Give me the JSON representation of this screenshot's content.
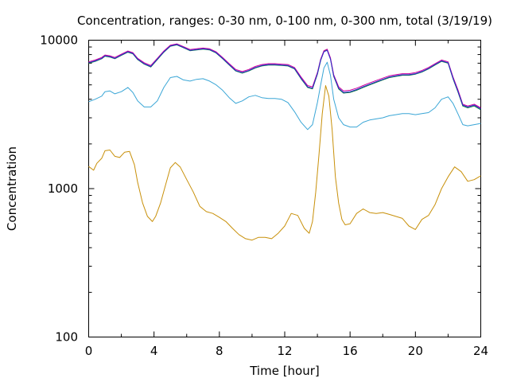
{
  "chart_data": {
    "type": "line",
    "title": "Concentration, ranges: 0-30 nm, 0-100 nm, 0-300 nm, total (3/19/19)",
    "xlabel": "Time [hour]",
    "ylabel": "Concentration",
    "xlim": [
      0,
      24
    ],
    "ylim": [
      100,
      10000
    ],
    "yscale": "log",
    "x_ticks": [
      "0",
      "4",
      "8",
      "12",
      "16",
      "20",
      "24"
    ],
    "y_ticks": [
      "100",
      "1000",
      "10000"
    ],
    "grid": false,
    "legend": "none",
    "series": [
      {
        "color": "#c8900a",
        "x": [
          0,
          0.3,
          0.5,
          0.8,
          1.0,
          1.3,
          1.6,
          1.9,
          2.2,
          2.5,
          2.8,
          3.0,
          3.3,
          3.6,
          3.9,
          4.1,
          4.4,
          4.7,
          5.0,
          5.3,
          5.6,
          6.0,
          6.4,
          6.8,
          7.2,
          7.6,
          8.0,
          8.4,
          8.8,
          9.2,
          9.6,
          10.0,
          10.4,
          10.8,
          11.2,
          11.6,
          12.0,
          12.4,
          12.8,
          13.2,
          13.5,
          13.7,
          13.9,
          14.1,
          14.3,
          14.5,
          14.7,
          14.9,
          15.1,
          15.3,
          15.5,
          15.7,
          16.0,
          16.4,
          16.8,
          17.2,
          17.6,
          18.0,
          18.4,
          18.8,
          19.2,
          19.6,
          20.0,
          20.4,
          20.8,
          21.2,
          21.6,
          22.0,
          22.4,
          22.8,
          23.2,
          23.6,
          24.0
        ],
        "values": [
          1410,
          1330,
          1480,
          1600,
          1800,
          1820,
          1650,
          1620,
          1760,
          1780,
          1450,
          1100,
          800,
          650,
          600,
          650,
          800,
          1050,
          1380,
          1500,
          1400,
          1150,
          950,
          760,
          700,
          680,
          640,
          600,
          540,
          490,
          460,
          450,
          470,
          470,
          460,
          500,
          560,
          680,
          660,
          540,
          500,
          600,
          950,
          1700,
          3200,
          4950,
          4200,
          2500,
          1200,
          800,
          620,
          570,
          580,
          680,
          730,
          690,
          680,
          690,
          670,
          650,
          630,
          560,
          530,
          620,
          660,
          780,
          1000,
          1200,
          1400,
          1300,
          1120,
          1150,
          1220
        ]
      },
      {
        "color": "#3aa6d6",
        "x": [
          0,
          0.4,
          0.8,
          1.0,
          1.3,
          1.6,
          2.0,
          2.4,
          2.7,
          3.0,
          3.4,
          3.8,
          4.2,
          4.6,
          5.0,
          5.4,
          5.8,
          6.2,
          6.6,
          7.0,
          7.4,
          7.8,
          8.2,
          8.6,
          9.0,
          9.4,
          9.8,
          10.2,
          10.6,
          11.0,
          11.4,
          11.8,
          12.2,
          12.6,
          13.0,
          13.4,
          13.7,
          14.0,
          14.2,
          14.4,
          14.6,
          14.8,
          15.0,
          15.3,
          15.6,
          16.0,
          16.4,
          16.8,
          17.2,
          17.6,
          18.0,
          18.4,
          18.8,
          19.2,
          19.6,
          20.0,
          20.4,
          20.8,
          21.2,
          21.6,
          22.0,
          22.3,
          22.6,
          22.9,
          23.2,
          23.6,
          24.0
        ],
        "values": [
          3850,
          4000,
          4200,
          4500,
          4550,
          4350,
          4500,
          4800,
          4450,
          3900,
          3550,
          3550,
          3900,
          4800,
          5600,
          5700,
          5400,
          5300,
          5450,
          5500,
          5300,
          5000,
          4600,
          4100,
          3750,
          3900,
          4150,
          4250,
          4100,
          4050,
          4050,
          4000,
          3800,
          3300,
          2800,
          2500,
          2700,
          3800,
          5000,
          6500,
          7100,
          5800,
          4000,
          3000,
          2700,
          2600,
          2600,
          2800,
          2900,
          2950,
          3000,
          3100,
          3150,
          3200,
          3200,
          3150,
          3200,
          3250,
          3500,
          4000,
          4150,
          3750,
          3200,
          2700,
          2650,
          2700,
          2750
        ]
      },
      {
        "color": "#0a7a3c",
        "x": [
          0,
          0.4,
          0.8,
          1.0,
          1.3,
          1.6,
          2.0,
          2.4,
          2.7,
          3.0,
          3.4,
          3.8,
          4.2,
          4.6,
          5.0,
          5.4,
          5.8,
          6.2,
          6.6,
          7.0,
          7.4,
          7.8,
          8.2,
          8.6,
          9.0,
          9.4,
          9.8,
          10.2,
          10.6,
          11.0,
          11.4,
          11.8,
          12.2,
          12.6,
          13.0,
          13.4,
          13.7,
          14.0,
          14.2,
          14.4,
          14.6,
          14.8,
          15.0,
          15.3,
          15.6,
          16.0,
          16.4,
          16.8,
          17.2,
          17.6,
          18.0,
          18.4,
          18.8,
          19.2,
          19.6,
          20.0,
          20.4,
          20.8,
          21.2,
          21.6,
          22.0,
          22.3,
          22.6,
          22.9,
          23.2,
          23.6,
          24.0
        ],
        "values": [
          7000,
          7200,
          7500,
          7800,
          7700,
          7500,
          7900,
          8300,
          8100,
          7400,
          6900,
          6600,
          7400,
          8300,
          9100,
          9300,
          8900,
          8500,
          8600,
          8700,
          8600,
          8200,
          7500,
          6800,
          6200,
          6000,
          6200,
          6500,
          6700,
          6800,
          6800,
          6750,
          6700,
          6400,
          5500,
          4800,
          4700,
          5900,
          7300,
          8400,
          8600,
          7500,
          5700,
          4700,
          4400,
          4450,
          4600,
          4800,
          5000,
          5200,
          5400,
          5600,
          5700,
          5800,
          5800,
          5900,
          6100,
          6400,
          6800,
          7200,
          7000,
          5500,
          4500,
          3600,
          3500,
          3600,
          3400
        ]
      },
      {
        "color": "#cc0099",
        "x": [
          0,
          0.4,
          0.8,
          1.0,
          1.3,
          1.6,
          2.0,
          2.4,
          2.7,
          3.0,
          3.4,
          3.8,
          4.2,
          4.6,
          5.0,
          5.4,
          5.8,
          6.2,
          6.6,
          7.0,
          7.4,
          7.8,
          8.2,
          8.6,
          9.0,
          9.4,
          9.8,
          10.2,
          10.6,
          11.0,
          11.4,
          11.8,
          12.2,
          12.6,
          13.0,
          13.4,
          13.7,
          14.0,
          14.2,
          14.4,
          14.6,
          14.8,
          15.0,
          15.3,
          15.6,
          16.0,
          16.4,
          16.8,
          17.2,
          17.6,
          18.0,
          18.4,
          18.8,
          19.2,
          19.6,
          20.0,
          20.4,
          20.8,
          21.2,
          21.6,
          22.0,
          22.3,
          22.6,
          22.9,
          23.2,
          23.6,
          24.0
        ],
        "values": [
          7150,
          7350,
          7650,
          7950,
          7850,
          7650,
          8050,
          8450,
          8250,
          7550,
          7050,
          6750,
          7550,
          8450,
          9250,
          9450,
          9050,
          8650,
          8750,
          8850,
          8750,
          8350,
          7650,
          6950,
          6350,
          6150,
          6350,
          6650,
          6850,
          6950,
          6950,
          6900,
          6850,
          6550,
          5650,
          4950,
          4850,
          6050,
          7450,
          8500,
          8700,
          7600,
          5850,
          4850,
          4550,
          4600,
          4750,
          4950,
          5150,
          5350,
          5550,
          5750,
          5850,
          5950,
          5950,
          6050,
          6250,
          6550,
          6950,
          7350,
          7150,
          5650,
          4650,
          3700,
          3600,
          3700,
          3500
        ]
      },
      {
        "color": "#2a2ad0",
        "x": [
          0,
          0.4,
          0.8,
          1.0,
          1.3,
          1.6,
          2.0,
          2.4,
          2.7,
          3.0,
          3.4,
          3.8,
          4.2,
          4.6,
          5.0,
          5.4,
          5.8,
          6.2,
          6.6,
          7.0,
          7.4,
          7.8,
          8.2,
          8.6,
          9.0,
          9.4,
          9.8,
          10.2,
          10.6,
          11.0,
          11.4,
          11.8,
          12.2,
          12.6,
          13.0,
          13.4,
          13.7,
          14.0,
          14.2,
          14.4,
          14.6,
          14.8,
          15.0,
          15.3,
          15.6,
          16.0,
          16.4,
          16.8,
          17.2,
          17.6,
          18.0,
          18.4,
          18.8,
          19.2,
          19.6,
          20.0,
          20.4,
          20.8,
          21.2,
          21.6,
          22.0,
          22.3,
          22.6,
          22.9,
          23.2,
          23.6,
          24.0
        ],
        "values": [
          7050,
          7250,
          7550,
          7850,
          7750,
          7550,
          7950,
          8350,
          8150,
          7450,
          6950,
          6650,
          7450,
          8350,
          9150,
          9350,
          8950,
          8550,
          8650,
          8750,
          8650,
          8250,
          7550,
          6850,
          6250,
          6050,
          6250,
          6550,
          6750,
          6850,
          6850,
          6800,
          6750,
          6450,
          5550,
          4850,
          4750,
          5950,
          7350,
          8350,
          8550,
          7450,
          5750,
          4750,
          4450,
          4500,
          4650,
          4850,
          5050,
          5250,
          5450,
          5650,
          5750,
          5850,
          5850,
          5950,
          6150,
          6450,
          6850,
          7250,
          7050,
          5550,
          4550,
          3650,
          3550,
          3650,
          3450
        ]
      }
    ]
  }
}
